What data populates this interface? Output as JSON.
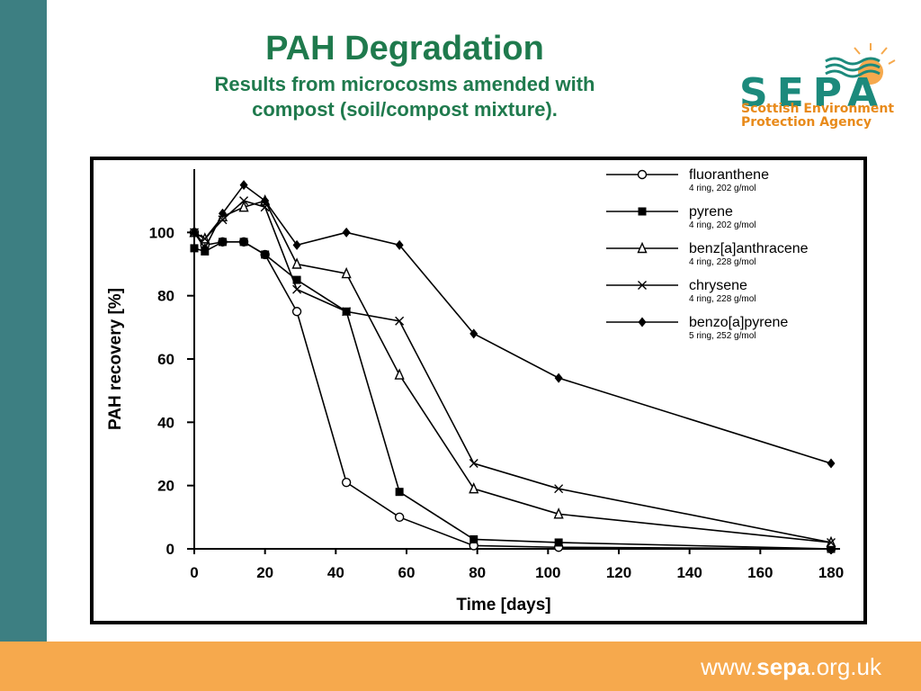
{
  "slide": {
    "title": "PAH Degradation",
    "subtitle_line1": "Results from microcosms amended with",
    "subtitle_line2": "compost (soil/compost mixture).",
    "footer_url_prefix": "www.",
    "footer_url_brand": "sepa",
    "footer_url_suffix": ".org.uk"
  },
  "logo": {
    "wordmark": "SEPA",
    "line1": "Scottish Environment",
    "line2": "Protection Agency"
  },
  "colors": {
    "teal_bar": "#3d7f82",
    "footer_orange": "#f6a94d",
    "title_green": "#1f7a4d"
  },
  "chart_data": {
    "type": "line",
    "xlabel": "Time [days]",
    "ylabel": "PAH recovery [%]",
    "xlim": [
      0,
      180
    ],
    "ylim": [
      0,
      120
    ],
    "xticks": [
      0,
      20,
      40,
      60,
      80,
      100,
      120,
      140,
      160,
      180
    ],
    "yticks": [
      0,
      20,
      40,
      60,
      80,
      100
    ],
    "grid": false,
    "legend_position": "top-right",
    "series": [
      {
        "name": "fluoranthene",
        "detail": "4 ring, 202 g/mol",
        "marker": "open-circle",
        "x": [
          0,
          3,
          8,
          14,
          20,
          29,
          43,
          58,
          79,
          103,
          180
        ],
        "y": [
          100,
          96,
          97,
          97,
          93,
          75,
          21,
          10,
          1,
          0.5,
          0
        ]
      },
      {
        "name": "pyrene",
        "detail": "4 ring, 202 g/mol",
        "marker": "filled-square",
        "x": [
          0,
          3,
          8,
          14,
          20,
          29,
          43,
          58,
          79,
          103,
          180
        ],
        "y": [
          95,
          94,
          97,
          97,
          93,
          85,
          75,
          18,
          3,
          2,
          0
        ]
      },
      {
        "name": "benz[a]anthracene",
        "detail": "4 ring, 228 g/mol",
        "marker": "open-triangle",
        "x": [
          0,
          3,
          8,
          14,
          20,
          29,
          43,
          58,
          79,
          103,
          180
        ],
        "y": [
          100,
          98,
          105,
          108,
          110,
          90,
          87,
          55,
          19,
          11,
          2
        ]
      },
      {
        "name": "chrysene",
        "detail": "4 ring, 228 g/mol",
        "marker": "cross",
        "x": [
          0,
          3,
          8,
          14,
          20,
          29,
          43,
          58,
          79,
          103,
          180
        ],
        "y": [
          100,
          98,
          104,
          110,
          108,
          82,
          75,
          72,
          27,
          19,
          2
        ]
      },
      {
        "name": "benzo[a]pyrene",
        "detail": "5 ring, 252 g/mol",
        "marker": "filled-diamond",
        "x": [
          0,
          3,
          8,
          14,
          20,
          29,
          43,
          58,
          79,
          103,
          180
        ],
        "y": [
          100,
          95,
          106,
          115,
          110,
          96,
          100,
          96,
          68,
          54,
          27
        ]
      }
    ]
  }
}
